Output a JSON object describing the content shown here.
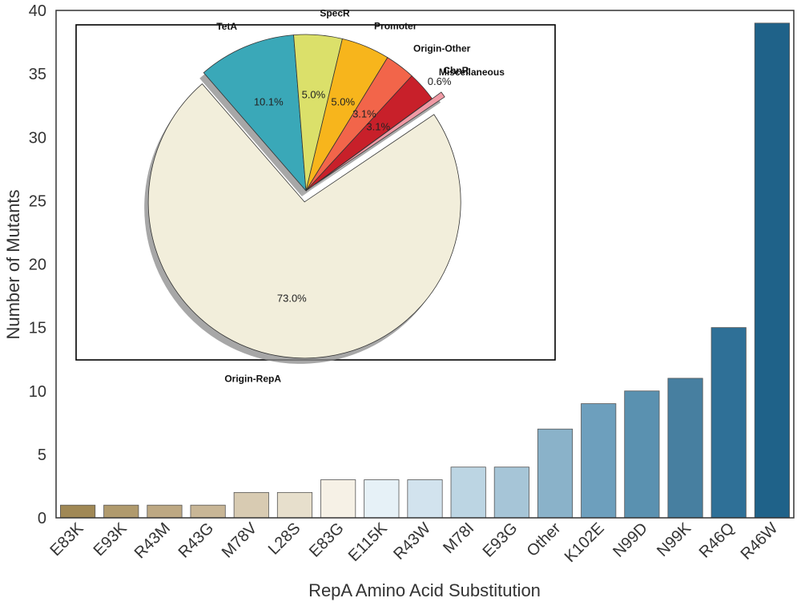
{
  "chart_data": [
    {
      "type": "bar",
      "title": "",
      "xlabel": "RepA Amino Acid Substitution",
      "ylabel": "Number of Mutants",
      "ylim": [
        0,
        40
      ],
      "yticks": [
        0,
        5,
        10,
        15,
        20,
        25,
        30,
        35,
        40
      ],
      "categories": [
        "E83K",
        "E93K",
        "R43M",
        "R43G",
        "M78V",
        "L28S",
        "E83G",
        "E115K",
        "R43W",
        "M78I",
        "E93G",
        "Other",
        "K102E",
        "N99D",
        "N99K",
        "R46Q",
        "R46W"
      ],
      "values": [
        1,
        1,
        1,
        1,
        2,
        2,
        3,
        3,
        3,
        4,
        4,
        7,
        9,
        10,
        11,
        15,
        39
      ],
      "colors": [
        "#a08855",
        "#b09a6d",
        "#bda883",
        "#c8b696",
        "#d8cbb2",
        "#e7dfcc",
        "#f6f1e6",
        "#e6f1f7",
        "#d2e3ee",
        "#bcd5e3",
        "#a6c5d7",
        "#8ab2c9",
        "#6d9fbd",
        "#5a91b0",
        "#477fa0",
        "#2f7097",
        "#1f6289"
      ],
      "grid": false
    },
    {
      "type": "pie",
      "title": "",
      "labels": [
        "Origin-RepA",
        "TetA",
        "SpecR",
        "Promoter",
        "Origin-Other",
        "Miscellaneous",
        "ChnR"
      ],
      "values": [
        73.0,
        10.1,
        5.0,
        5.0,
        3.1,
        3.1,
        0.6
      ],
      "value_labels": [
        "73.0%",
        "10.1%",
        "5.0%",
        "5.0%",
        "3.1%",
        "3.1%",
        "0.6%"
      ],
      "colors": [
        "#f2eedb",
        "#3aa8b8",
        "#dbe06a",
        "#f7b51c",
        "#f2654a",
        "#c8202a",
        "#f09aa5"
      ],
      "exploded": [
        "Origin-RepA",
        "ChnR"
      ],
      "shadow": true
    }
  ]
}
